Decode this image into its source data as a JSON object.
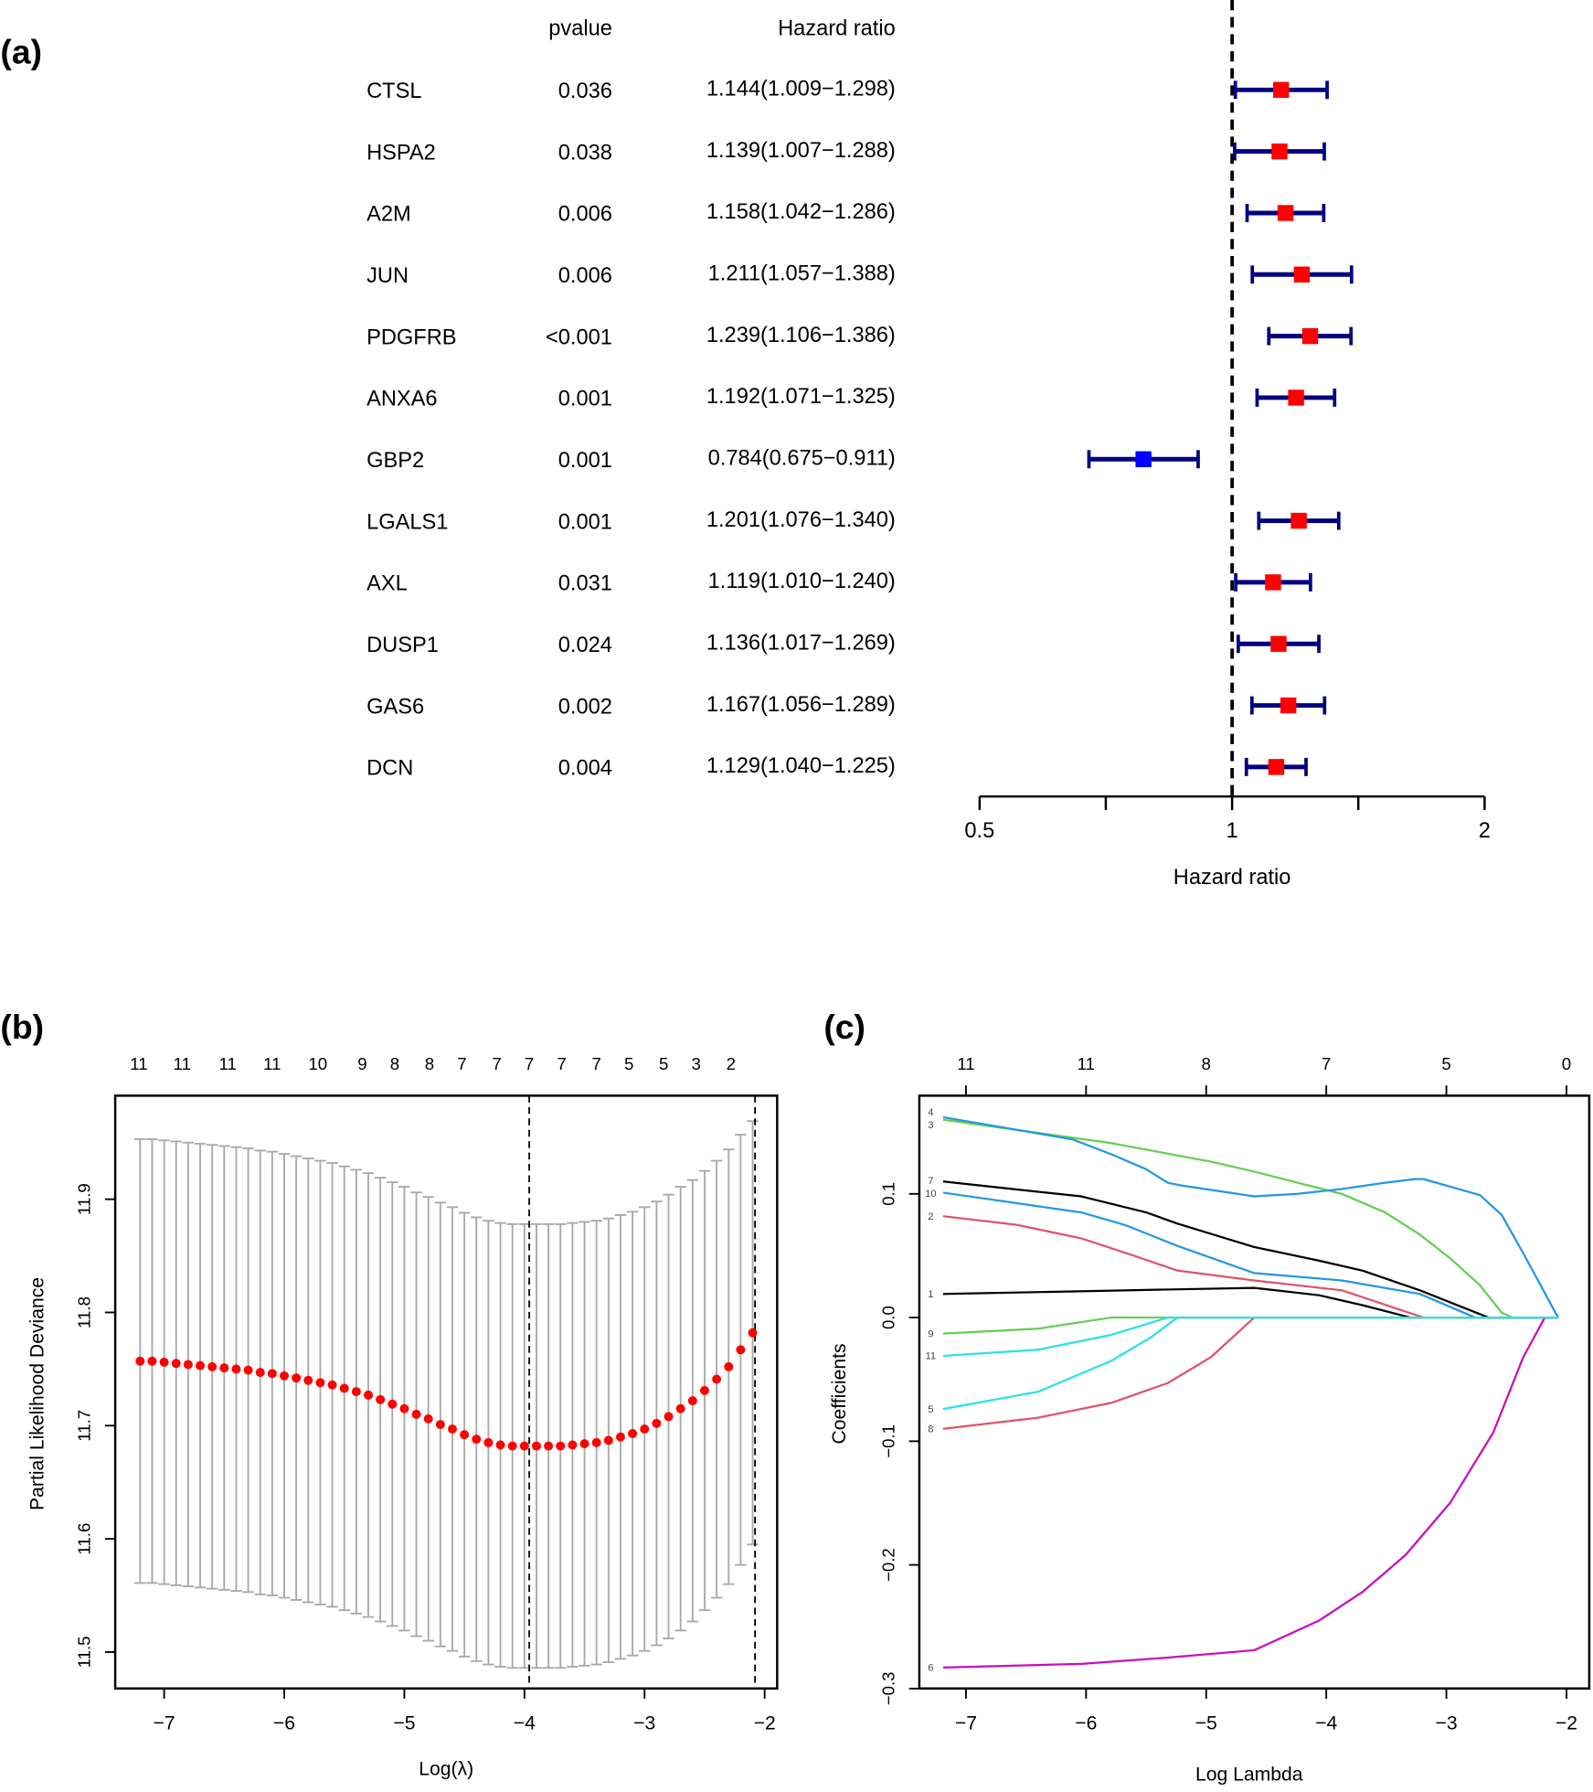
{
  "panels": {
    "a": "(a)",
    "b": "(b)",
    "c": "(c)"
  },
  "chart_data": [
    {
      "type": "forest",
      "panel": "(a)",
      "col_headers": {
        "pvalue": "pvalue",
        "hr": "Hazard ratio"
      },
      "xlabel": "Hazard ratio",
      "xscale": "log",
      "xlim": [
        0.5,
        2
      ],
      "xticks": [
        0.5,
        0.707,
        1,
        1.414,
        2
      ],
      "xtick_labels": [
        "0.5",
        "",
        "1",
        "",
        "2"
      ],
      "reference_line": 1,
      "colors": {
        "risk": "#FF0000",
        "protective": "#0000FF",
        "ci": "#000080"
      },
      "rows": [
        {
          "gene": "CTSL",
          "pvalue": "0.036",
          "hr_text": "1.144(1.009−1.298)",
          "hr": 1.144,
          "low": 1.009,
          "high": 1.298
        },
        {
          "gene": "HSPA2",
          "pvalue": "0.038",
          "hr_text": "1.139(1.007−1.288)",
          "hr": 1.139,
          "low": 1.007,
          "high": 1.288
        },
        {
          "gene": "A2M",
          "pvalue": "0.006",
          "hr_text": "1.158(1.042−1.286)",
          "hr": 1.158,
          "low": 1.042,
          "high": 1.286
        },
        {
          "gene": "JUN",
          "pvalue": "0.006",
          "hr_text": "1.211(1.057−1.388)",
          "hr": 1.211,
          "low": 1.057,
          "high": 1.388
        },
        {
          "gene": "PDGFRB",
          "pvalue": "<0.001",
          "hr_text": "1.239(1.106−1.386)",
          "hr": 1.239,
          "low": 1.106,
          "high": 1.386
        },
        {
          "gene": "ANXA6",
          "pvalue": "0.001",
          "hr_text": "1.192(1.071−1.325)",
          "hr": 1.192,
          "low": 1.071,
          "high": 1.325
        },
        {
          "gene": "GBP2",
          "pvalue": "0.001",
          "hr_text": "0.784(0.675−0.911)",
          "hr": 0.784,
          "low": 0.675,
          "high": 0.911
        },
        {
          "gene": "LGALS1",
          "pvalue": "0.001",
          "hr_text": "1.201(1.076−1.340)",
          "hr": 1.201,
          "low": 1.076,
          "high": 1.34
        },
        {
          "gene": "AXL",
          "pvalue": "0.031",
          "hr_text": "1.119(1.010−1.240)",
          "hr": 1.119,
          "low": 1.01,
          "high": 1.24
        },
        {
          "gene": "DUSP1",
          "pvalue": "0.024",
          "hr_text": "1.136(1.017−1.269)",
          "hr": 1.136,
          "low": 1.017,
          "high": 1.269
        },
        {
          "gene": "GAS6",
          "pvalue": "0.002",
          "hr_text": "1.167(1.056−1.289)",
          "hr": 1.167,
          "low": 1.056,
          "high": 1.289
        },
        {
          "gene": "DCN",
          "pvalue": "0.004",
          "hr_text": "1.129(1.040−1.225)",
          "hr": 1.129,
          "low": 1.04,
          "high": 1.225
        }
      ]
    },
    {
      "type": "scatter",
      "panel": "(b)",
      "xlabel": "Log(λ)",
      "ylabel": "Partial Likelihood Deviance",
      "xlim": [
        -7.4,
        -1.9
      ],
      "ylim": [
        11.475,
        11.99
      ],
      "xticks": [
        -7,
        -6,
        -5,
        -4,
        -3,
        -2
      ],
      "yticks": [
        11.5,
        11.6,
        11.7,
        11.8,
        11.9
      ],
      "top_axis": {
        "x": [
          -7.21,
          -6.85,
          -6.47,
          -6.1,
          -5.72,
          -5.35,
          -5.08,
          -4.79,
          -4.52,
          -4.23,
          -3.96,
          -3.69,
          -3.4,
          -3.13,
          -2.84,
          -2.57,
          -2.28
        ],
        "labels": [
          "11",
          "11",
          "11",
          "11",
          "10",
          "9",
          "8",
          "8",
          "7",
          "7",
          "7",
          "7",
          "7",
          "5",
          "5",
          "3",
          "2"
        ]
      },
      "vlines": [
        -3.96,
        -2.08
      ],
      "colors": {
        "points": "#FF0000",
        "errorbars": "#A9A9A9"
      },
      "x": [
        -7.2,
        -7.1,
        -7.0,
        -6.9,
        -6.8,
        -6.7,
        -6.6,
        -6.5,
        -6.4,
        -6.3,
        -6.2,
        -6.1,
        -6.0,
        -5.9,
        -5.8,
        -5.7,
        -5.6,
        -5.5,
        -5.4,
        -5.3,
        -5.2,
        -5.1,
        -5.0,
        -4.9,
        -4.8,
        -4.7,
        -4.6,
        -4.5,
        -4.4,
        -4.3,
        -4.2,
        -4.1,
        -4.0,
        -3.9,
        -3.8,
        -3.7,
        -3.6,
        -3.5,
        -3.4,
        -3.3,
        -3.2,
        -3.1,
        -3.0,
        -2.9,
        -2.8,
        -2.7,
        -2.6,
        -2.5,
        -2.4,
        -2.3,
        -2.2,
        -2.1
      ],
      "mean": [
        11.757,
        11.757,
        11.756,
        11.755,
        11.754,
        11.753,
        11.752,
        11.751,
        11.75,
        11.749,
        11.747,
        11.746,
        11.744,
        11.742,
        11.74,
        11.738,
        11.736,
        11.733,
        11.73,
        11.727,
        11.723,
        11.719,
        11.715,
        11.71,
        11.706,
        11.701,
        11.697,
        11.692,
        11.688,
        11.685,
        11.683,
        11.682,
        11.682,
        11.682,
        11.682,
        11.682,
        11.683,
        11.684,
        11.685,
        11.687,
        11.69,
        11.693,
        11.697,
        11.702,
        11.708,
        11.715,
        11.722,
        11.731,
        11.741,
        11.752,
        11.767,
        11.782
      ],
      "lower": [
        11.561,
        11.561,
        11.56,
        11.559,
        11.558,
        11.557,
        11.556,
        11.555,
        11.554,
        11.553,
        11.551,
        11.55,
        11.548,
        11.546,
        11.544,
        11.542,
        11.54,
        11.537,
        11.534,
        11.531,
        11.527,
        11.523,
        11.519,
        11.514,
        11.51,
        11.505,
        11.501,
        11.496,
        11.492,
        11.489,
        11.487,
        11.486,
        11.486,
        11.486,
        11.486,
        11.486,
        11.487,
        11.488,
        11.489,
        11.491,
        11.494,
        11.497,
        11.501,
        11.506,
        11.512,
        11.519,
        11.527,
        11.537,
        11.548,
        11.56,
        11.577,
        11.595
      ],
      "upper": [
        11.953,
        11.953,
        11.952,
        11.951,
        11.95,
        11.949,
        11.948,
        11.947,
        11.946,
        11.945,
        11.943,
        11.942,
        11.94,
        11.938,
        11.936,
        11.934,
        11.932,
        11.929,
        11.926,
        11.923,
        11.919,
        11.915,
        11.911,
        11.906,
        11.902,
        11.897,
        11.893,
        11.888,
        11.884,
        11.881,
        11.879,
        11.878,
        11.878,
        11.878,
        11.878,
        11.878,
        11.879,
        11.88,
        11.881,
        11.883,
        11.886,
        11.889,
        11.893,
        11.898,
        11.904,
        11.911,
        11.917,
        11.925,
        11.934,
        11.944,
        11.957,
        11.969
      ]
    },
    {
      "type": "line",
      "panel": "(c)",
      "xlabel": "Log Lambda",
      "ylabel": "Coefficients",
      "xlim": [
        -7.4,
        -1.9
      ],
      "ylim": [
        -0.3,
        0.17
      ],
      "xticks": [
        -7,
        -6,
        -5,
        -4,
        -3,
        -2
      ],
      "yticks": [
        -0.3,
        -0.2,
        -0.1,
        0.0,
        0.1
      ],
      "top_axis": {
        "x": [
          -7,
          -6,
          -5,
          -4,
          -3,
          -2
        ],
        "labels": [
          "11",
          "11",
          "8",
          "7",
          "5",
          "0"
        ]
      },
      "series": [
        {
          "label": "1",
          "color": "#000000",
          "points": [
            [
              -7.19,
              0.019
            ],
            [
              -5.68,
              0.022
            ],
            [
              -4.6,
              0.024
            ],
            [
              -4.06,
              0.018
            ],
            [
              -3.7,
              0.01
            ],
            [
              -3.3,
              0
            ],
            [
              -2.07,
              0
            ]
          ]
        },
        {
          "label": "2",
          "color": "#DF536B",
          "points": [
            [
              -7.19,
              0.082
            ],
            [
              -6.58,
              0.075
            ],
            [
              -6.04,
              0.064
            ],
            [
              -5.6,
              0.05
            ],
            [
              -5.24,
              0.038
            ],
            [
              -4.6,
              0.03
            ],
            [
              -3.87,
              0.022
            ],
            [
              -3.19,
              0
            ],
            [
              -2.07,
              0
            ]
          ]
        },
        {
          "label": "3",
          "color": "#61D04F",
          "points": [
            [
              -7.19,
              0.16
            ],
            [
              -5.79,
              0.141
            ],
            [
              -4.96,
              0.126
            ],
            [
              -4.6,
              0.118
            ],
            [
              -4.24,
              0.109
            ],
            [
              -3.87,
              0.1
            ],
            [
              -3.51,
              0.085
            ],
            [
              -3.22,
              0.067
            ],
            [
              -2.97,
              0.048
            ],
            [
              -2.72,
              0.026
            ],
            [
              -2.54,
              0.004
            ],
            [
              -2.45,
              0
            ],
            [
              -2.07,
              0
            ]
          ]
        },
        {
          "label": "4",
          "color": "#2297E6",
          "points": [
            [
              -7.19,
              0.162
            ],
            [
              -6.11,
              0.144
            ],
            [
              -5.79,
              0.132
            ],
            [
              -5.5,
              0.12
            ],
            [
              -5.32,
              0.109
            ],
            [
              -5.22,
              0.107
            ],
            [
              -4.6,
              0.098
            ],
            [
              -4.24,
              0.1
            ],
            [
              -3.87,
              0.104
            ],
            [
              -3.51,
              0.109
            ],
            [
              -3.26,
              0.112
            ],
            [
              -3.19,
              0.112
            ],
            [
              -2.72,
              0.099
            ],
            [
              -2.54,
              0.083
            ],
            [
              -2.36,
              0.052
            ],
            [
              -2.07,
              0
            ]
          ]
        },
        {
          "label": "5",
          "color": "#28E2E5",
          "points": [
            [
              -7.19,
              -0.074
            ],
            [
              -6.4,
              -0.06
            ],
            [
              -5.79,
              -0.035
            ],
            [
              -5.46,
              -0.016
            ],
            [
              -5.24,
              0
            ],
            [
              -2.07,
              0
            ]
          ]
        },
        {
          "label": "6",
          "color": "#CD0BBC",
          "points": [
            [
              -7.19,
              -0.283
            ],
            [
              -6.04,
              -0.28
            ],
            [
              -5.32,
              -0.275
            ],
            [
              -4.6,
              -0.269
            ],
            [
              -4.06,
              -0.245
            ],
            [
              -3.7,
              -0.222
            ],
            [
              -3.34,
              -0.192
            ],
            [
              -2.97,
              -0.15
            ],
            [
              -2.61,
              -0.093
            ],
            [
              -2.36,
              -0.032
            ],
            [
              -2.18,
              0
            ],
            [
              -2.07,
              0
            ]
          ]
        },
        {
          "label": "7",
          "color": "#000000",
          "points": [
            [
              -7.19,
              0.11
            ],
            [
              -6.04,
              0.098
            ],
            [
              -5.5,
              0.085
            ],
            [
              -5.24,
              0.076
            ],
            [
              -4.6,
              0.057
            ],
            [
              -4.06,
              0.046
            ],
            [
              -3.7,
              0.038
            ],
            [
              -3.22,
              0.022
            ],
            [
              -2.65,
              0
            ],
            [
              -2.07,
              0
            ]
          ]
        },
        {
          "label": "8",
          "color": "#DF536B",
          "points": [
            [
              -7.19,
              -0.09
            ],
            [
              -6.4,
              -0.081
            ],
            [
              -5.79,
              -0.069
            ],
            [
              -5.32,
              -0.053
            ],
            [
              -4.96,
              -0.032
            ],
            [
              -4.6,
              0
            ],
            [
              -2.07,
              0
            ]
          ]
        },
        {
          "label": "9",
          "color": "#61D04F",
          "points": [
            [
              -7.19,
              -0.013
            ],
            [
              -6.4,
              -0.009
            ],
            [
              -5.79,
              0
            ],
            [
              -2.07,
              0
            ]
          ]
        },
        {
          "label": "10",
          "color": "#2297E6",
          "points": [
            [
              -7.19,
              0.101
            ],
            [
              -6.04,
              0.085
            ],
            [
              -5.68,
              0.075
            ],
            [
              -5.24,
              0.058
            ],
            [
              -4.6,
              0.036
            ],
            [
              -3.87,
              0.03
            ],
            [
              -3.22,
              0.019
            ],
            [
              -2.76,
              0
            ],
            [
              -2.07,
              0
            ]
          ]
        },
        {
          "label": "11",
          "color": "#28E2E5",
          "points": [
            [
              -7.19,
              -0.031
            ],
            [
              -6.4,
              -0.026
            ],
            [
              -5.79,
              -0.014
            ],
            [
              -5.32,
              0
            ],
            [
              -2.07,
              0
            ]
          ]
        }
      ]
    }
  ]
}
